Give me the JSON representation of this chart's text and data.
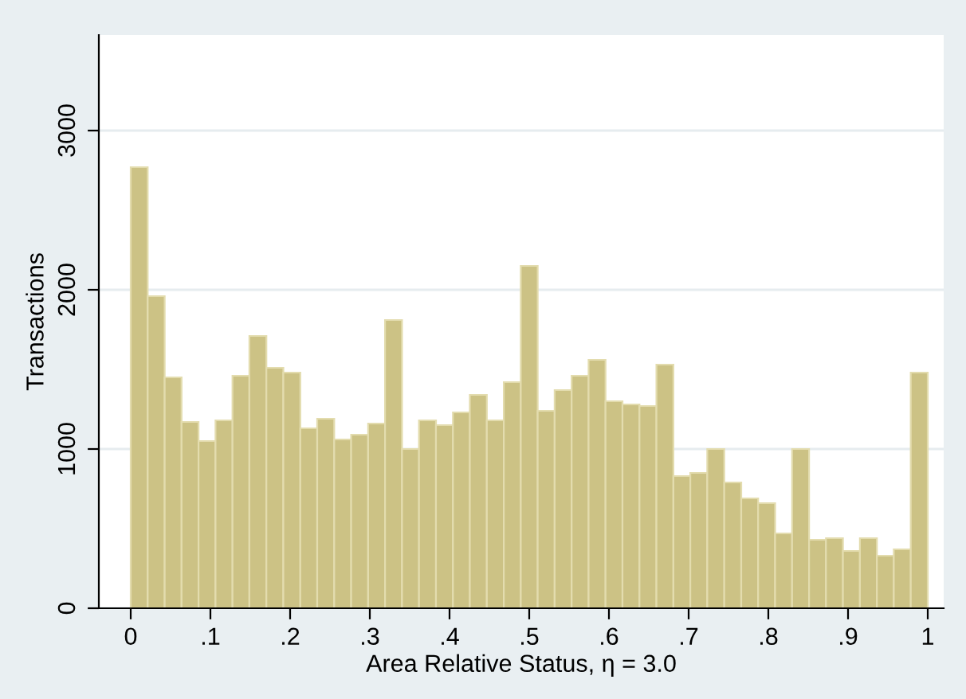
{
  "chart_data": {
    "type": "histogram",
    "xlabel": "Area Relative Status, η = 3.0",
    "ylabel": "Transactions",
    "color": "#ccc285",
    "bins": [
      0,
      0.0213,
      0.0426,
      0.0638,
      0.0851,
      0.1064,
      0.1277,
      0.1489,
      0.1702,
      0.1915,
      0.2128,
      0.234,
      0.2553,
      0.2766,
      0.2979,
      0.3191,
      0.3404,
      0.3617,
      0.383,
      0.4043,
      0.4255,
      0.4468,
      0.4681,
      0.4894,
      0.5106,
      0.5319,
      0.5532,
      0.5745,
      0.5957,
      0.617,
      0.6383,
      0.6596,
      0.6809,
      0.7021,
      0.7234,
      0.7447,
      0.766,
      0.7872,
      0.8085,
      0.8298,
      0.8511,
      0.8723,
      0.8936,
      0.9149,
      0.9362,
      0.9574,
      0.9787,
      1
    ],
    "values": [
      2770,
      1960,
      1450,
      1170,
      1050,
      1180,
      1460,
      1710,
      1510,
      1480,
      1130,
      1190,
      1060,
      1090,
      1160,
      1810,
      1000,
      1180,
      1150,
      1230,
      1340,
      1180,
      1420,
      2150,
      1240,
      1370,
      1460,
      1560,
      1300,
      1280,
      1270,
      1530,
      830,
      850,
      1000,
      790,
      690,
      660,
      470,
      1000,
      430,
      440,
      360,
      440,
      330,
      370,
      1480
    ],
    "xlim": [
      -0.04,
      1.02
    ],
    "ylim": [
      0,
      3600
    ],
    "xticks": [
      0,
      {
        "value": 0.1,
        "label": ".1"
      },
      {
        "value": 0.2,
        "label": ".2"
      },
      {
        "value": 0.3,
        "label": ".3"
      },
      {
        "value": 0.4,
        "label": ".4"
      },
      {
        "value": 0.5,
        "label": ".5"
      },
      {
        "value": 0.6,
        "label": ".6"
      },
      {
        "value": 0.7,
        "label": ".7"
      },
      {
        "value": 0.8,
        "label": ".8"
      },
      {
        "value": 0.9,
        "label": ".9"
      },
      1
    ],
    "yticks": [
      0,
      1000,
      2000,
      3000
    ],
    "grid": "y"
  }
}
